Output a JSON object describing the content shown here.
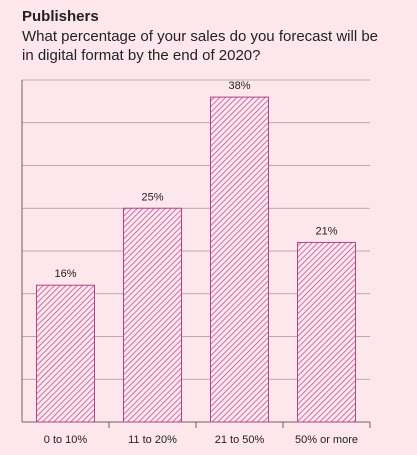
{
  "header": {
    "title": "Publishers",
    "subtitle": "What percentage of your sales do you forecast will be in digital format by the end of 2020?"
  },
  "colors": {
    "background": "#fde6ec",
    "bar_stroke": "#b3428a",
    "hatch": "#b3428a",
    "grid": "#9a9a9a",
    "axis": "#666666"
  },
  "chart_data": {
    "type": "bar",
    "categories": [
      "0 to 10%",
      "11 to 20%",
      "21 to 50%",
      "50% or more"
    ],
    "values": [
      16,
      25,
      38,
      21
    ],
    "data_labels": [
      "16%",
      "25%",
      "38%",
      "21%"
    ],
    "title": "Publishers",
    "subtitle": "What percentage of your sales do you forecast will be in digital format by the end of 2020?",
    "xlabel": "",
    "ylabel": "",
    "ylim": [
      0,
      40
    ],
    "grid": true,
    "bar_fill": "diagonal-hatch"
  }
}
